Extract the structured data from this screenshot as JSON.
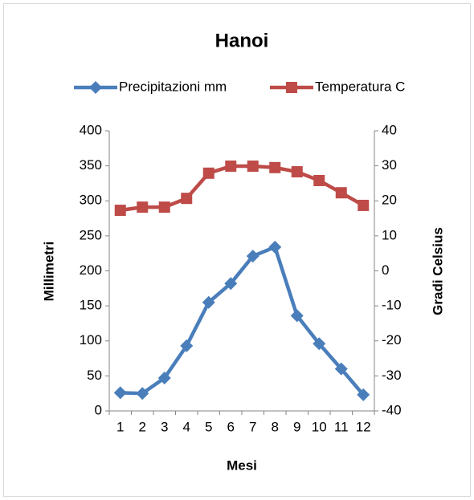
{
  "chart_data": {
    "type": "line",
    "title": "Hanoi",
    "x_label": "Mesi",
    "y_label": "Millimetri",
    "y2_label": "Gradi Celsius",
    "categories": [
      "1",
      "2",
      "3",
      "4",
      "5",
      "6",
      "7",
      "8",
      "9",
      "10",
      "11",
      "12"
    ],
    "series": [
      {
        "name": "Precipitazioni mm",
        "color": "#4a7ebb",
        "marker": "diamond",
        "axis": "y",
        "values": [
          26,
          25,
          47,
          93,
          155,
          182,
          221,
          234,
          136,
          96,
          60,
          23
        ]
      },
      {
        "name": "Temperatura C",
        "color": "#be4b48",
        "marker": "square",
        "axis": "y2",
        "values": [
          17.3,
          18.2,
          18.2,
          20.7,
          27.9,
          29.9,
          29.9,
          29.5,
          28.3,
          25.8,
          22.3,
          18.7
        ]
      }
    ],
    "ylim": [
      0,
      400
    ],
    "yticks": [
      0,
      50,
      100,
      150,
      200,
      250,
      300,
      350,
      400
    ],
    "y2lim": [
      -40,
      40
    ],
    "y2ticks": [
      -40,
      -30,
      -20,
      -10,
      0,
      10,
      20,
      30,
      40
    ],
    "grid": false,
    "legend": "top"
  }
}
